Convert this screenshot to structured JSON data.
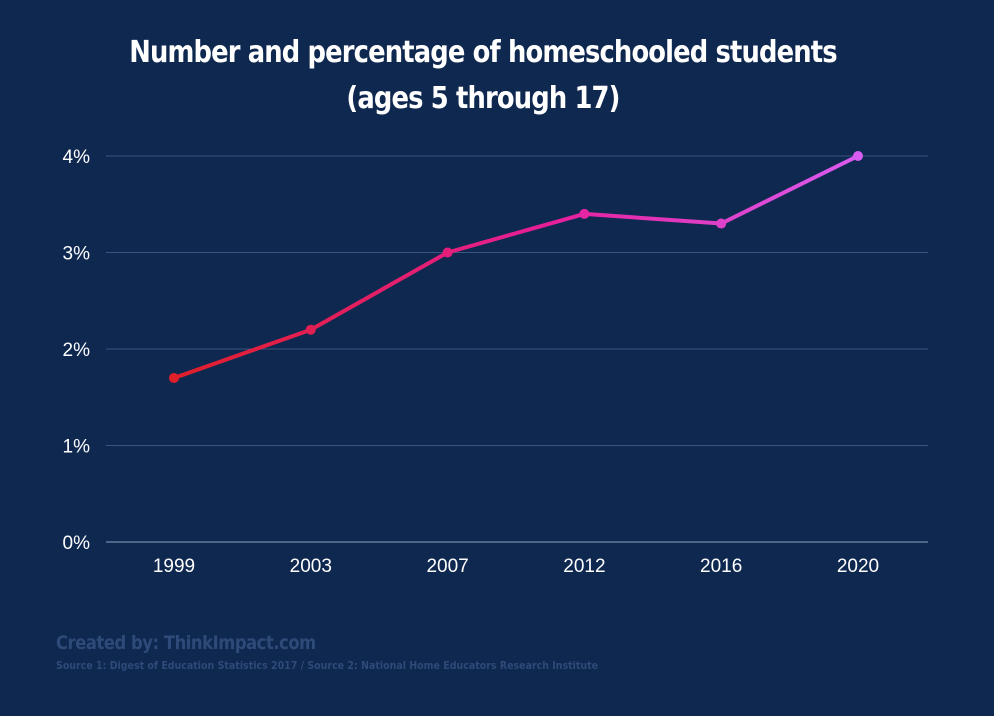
{
  "chart_data": {
    "type": "line",
    "title_line1": "Number and percentage of homeschooled students",
    "title_line2": "(ages 5 through 17)",
    "categories": [
      "1999",
      "2003",
      "2007",
      "2012",
      "2016",
      "2020"
    ],
    "values": [
      1.7,
      2.2,
      3.0,
      3.4,
      3.3,
      4.0
    ],
    "y_ticks": [
      0,
      1,
      2,
      3,
      4
    ],
    "y_tick_labels": [
      "0%",
      "1%",
      "2%",
      "3%",
      "4%"
    ],
    "ylim": [
      0,
      4
    ],
    "xlabel": "",
    "ylabel": "",
    "grid": true,
    "colors": {
      "background": "#0f2850",
      "grid": "#3a5580",
      "text": "#ffffff",
      "line_gradient": [
        "#e01f2a",
        "#e61f9a",
        "#d95cf0"
      ]
    }
  },
  "footer": {
    "credit": "Created by: ThinkImpact.com",
    "source": "Source 1: Digest of Education Statistics 2017 / Source 2: National Home Educators Research Institute"
  }
}
